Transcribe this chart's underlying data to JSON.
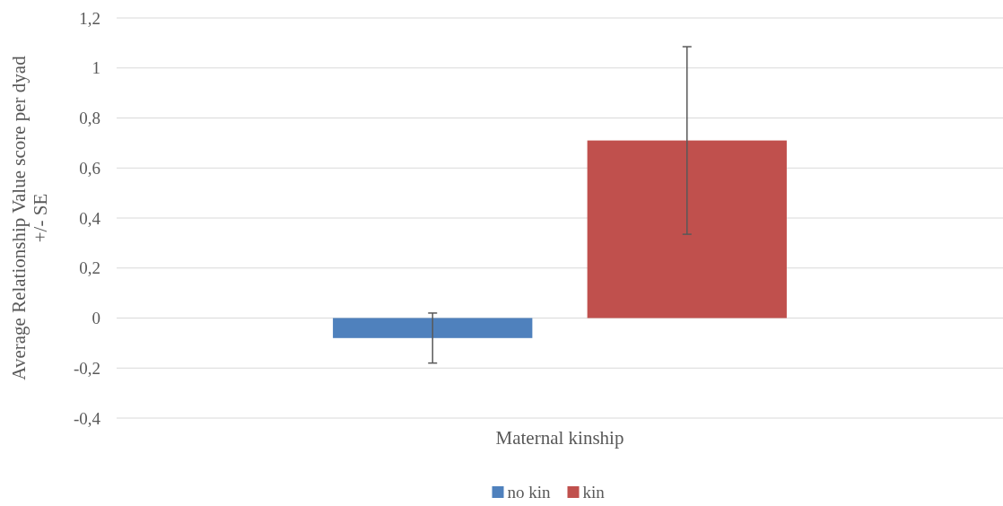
{
  "chart_data": {
    "type": "bar",
    "ylabel": "Average Relationship Value score per dyad\n+/- SE",
    "categories": [
      "Maternal kinship"
    ],
    "series": [
      {
        "name": "no kin",
        "color": "#4f81bd",
        "values": [
          -0.08
        ],
        "errors": [
          [
            -0.18,
            0.02
          ]
        ]
      },
      {
        "name": "kin",
        "color": "#c0504d",
        "values": [
          0.71
        ],
        "errors": [
          [
            0.335,
            1.085
          ]
        ]
      }
    ],
    "ylim": [
      -0.4,
      1.2
    ],
    "yticks": [
      {
        "value": -0.4,
        "label": "-0,4"
      },
      {
        "value": -0.2,
        "label": "-0,2"
      },
      0,
      {
        "value": 0.2,
        "label": "0,2"
      },
      {
        "value": 0.4,
        "label": "0,4"
      },
      {
        "value": 0.6,
        "label": "0,6"
      },
      {
        "value": 0.8,
        "label": "0,8"
      },
      1,
      {
        "value": 1.2,
        "label": "1,2"
      }
    ],
    "grid": "y",
    "legend": "bottom"
  }
}
